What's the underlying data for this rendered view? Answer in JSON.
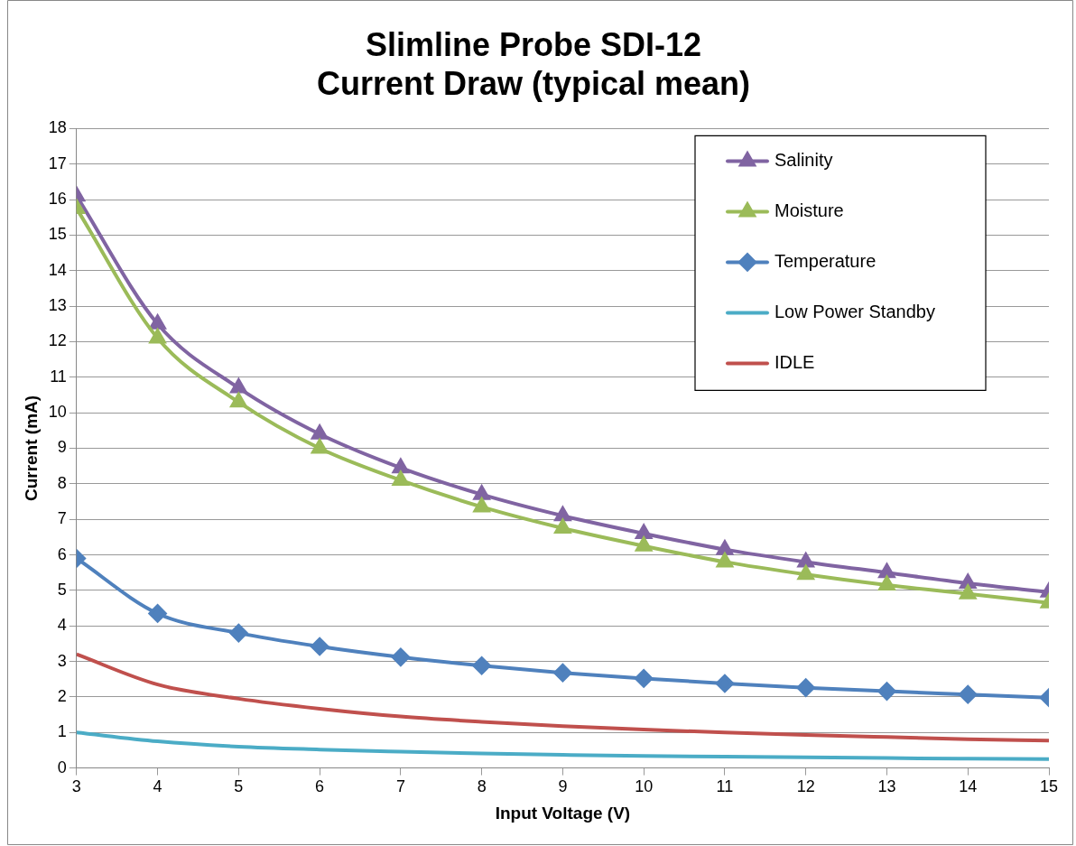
{
  "chart_data": {
    "type": "line",
    "title": "Slimline Probe SDI-12\nCurrent Draw (typical mean)",
    "xlabel": "Input Voltage (V)",
    "ylabel": "Current (mA)",
    "x": [
      3,
      4,
      5,
      6,
      7,
      8,
      9,
      10,
      11,
      12,
      13,
      14,
      15
    ],
    "xlim": [
      3,
      15
    ],
    "xticks": [
      3,
      4,
      5,
      6,
      7,
      8,
      9,
      10,
      11,
      12,
      13,
      14,
      15
    ],
    "ylim": [
      0,
      18
    ],
    "yticks": [
      0,
      1,
      2,
      3,
      4,
      5,
      6,
      7,
      8,
      9,
      10,
      11,
      12,
      13,
      14,
      15,
      16,
      17,
      18
    ],
    "grid": "y",
    "legend": "top right",
    "series": [
      {
        "name": "Salinity",
        "color": "#8064a2",
        "marker": "triangle",
        "values": [
          16.1,
          12.5,
          10.7,
          9.4,
          8.45,
          7.7,
          7.1,
          6.6,
          6.15,
          5.8,
          5.5,
          5.2,
          4.95
        ]
      },
      {
        "name": "Moisture",
        "color": "#9bbb59",
        "marker": "triangle",
        "values": [
          15.75,
          12.1,
          10.3,
          9.0,
          8.1,
          7.35,
          6.75,
          6.25,
          5.8,
          5.45,
          5.15,
          4.9,
          4.65
        ]
      },
      {
        "name": "Temperature",
        "color": "#4f81bd",
        "marker": "diamond",
        "values": [
          5.9,
          4.35,
          3.8,
          3.42,
          3.12,
          2.88,
          2.68,
          2.52,
          2.38,
          2.26,
          2.16,
          2.07,
          1.98
        ]
      },
      {
        "name": "Low Power Standby",
        "color": "#4bacc6",
        "marker": "none",
        "values": [
          1.0,
          0.75,
          0.6,
          0.52,
          0.46,
          0.41,
          0.37,
          0.34,
          0.32,
          0.3,
          0.28,
          0.26,
          0.25
        ]
      },
      {
        "name": "IDLE",
        "color": "#c0504d",
        "marker": "none",
        "values": [
          3.2,
          2.35,
          1.95,
          1.67,
          1.45,
          1.3,
          1.18,
          1.08,
          1.0,
          0.93,
          0.87,
          0.81,
          0.77
        ]
      }
    ]
  }
}
